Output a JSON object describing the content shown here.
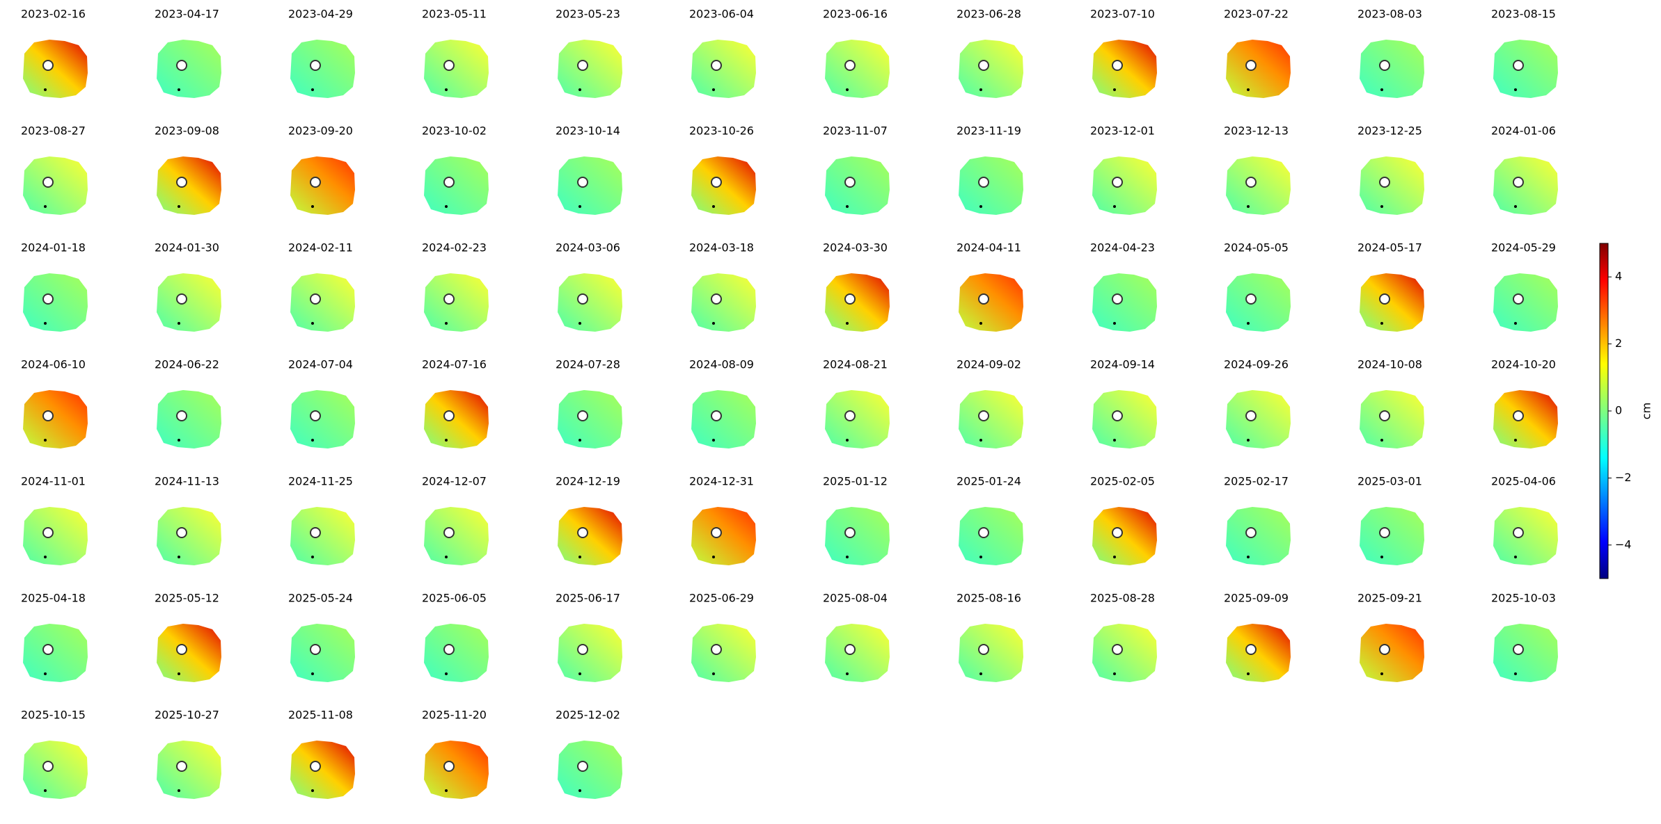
{
  "chart_data": {
    "type": "image-grid",
    "panel_titles": [
      "2023-02-16",
      "2023-04-17",
      "2023-04-29",
      "2023-05-11",
      "2023-05-23",
      "2023-06-04",
      "2023-06-16",
      "2023-06-28",
      "2023-07-10",
      "2023-07-22",
      "2023-08-03",
      "2023-08-15",
      "2023-08-27",
      "2023-09-08",
      "2023-09-20",
      "2023-10-02",
      "2023-10-14",
      "2023-10-26",
      "2023-11-07",
      "2023-11-19",
      "2023-12-01",
      "2023-12-13",
      "2023-12-25",
      "2024-01-06",
      "2024-01-18",
      "2024-01-30",
      "2024-02-11",
      "2024-02-23",
      "2024-03-06",
      "2024-03-18",
      "2024-03-30",
      "2024-04-11",
      "2024-04-23",
      "2024-05-05",
      "2024-05-17",
      "2024-05-29",
      "2024-06-10",
      "2024-06-22",
      "2024-07-04",
      "2024-07-16",
      "2024-07-28",
      "2024-08-09",
      "2024-08-21",
      "2024-09-02",
      "2024-09-14",
      "2024-09-26",
      "2024-10-08",
      "2024-10-20",
      "2024-11-01",
      "2024-11-13",
      "2024-11-25",
      "2024-12-07",
      "2024-12-19",
      "2024-12-31",
      "2025-01-12",
      "2025-01-24",
      "2025-02-05",
      "2025-02-17",
      "2025-03-01",
      "2025-04-06",
      "2025-04-18",
      "2025-05-12",
      "2025-05-24",
      "2025-06-05",
      "2025-06-17",
      "2025-06-29",
      "2025-08-04",
      "2025-08-16",
      "2025-08-28",
      "2025-09-09",
      "2025-09-21",
      "2025-10-03",
      "2025-10-15",
      "2025-10-27",
      "2025-11-08",
      "2025-11-20",
      "2025-12-02"
    ],
    "colormap": "jet",
    "ylabel": "cm",
    "ylim": [
      -5,
      5
    ],
    "yticks": [
      {
        "value": -4,
        "label": "−4"
      },
      {
        "value": -2,
        "label": "−2"
      },
      0,
      2,
      4
    ]
  }
}
